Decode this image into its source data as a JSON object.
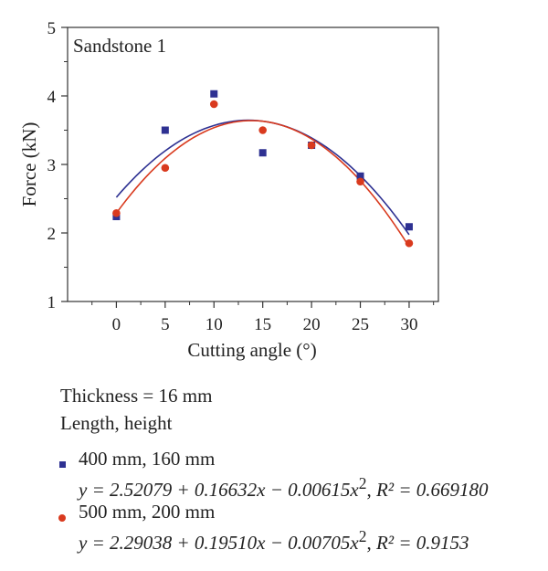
{
  "chart_data": {
    "type": "scatter",
    "title": "",
    "panel_label": "Sandstone 1",
    "xlabel": "Cutting angle (°)",
    "ylabel": "Force (kN)",
    "xlim": [
      -5,
      33
    ],
    "ylim": [
      1,
      5
    ],
    "x_ticks": [
      0,
      5,
      10,
      15,
      20,
      25,
      30
    ],
    "y_ticks": [
      1,
      2,
      3,
      4,
      5
    ],
    "grid": false,
    "series": [
      {
        "name": "400 mm, 160 mm",
        "marker": "square",
        "color": "#2e3192",
        "x": [
          0,
          5,
          10,
          15,
          20,
          25,
          30
        ],
        "y": [
          2.24,
          3.5,
          4.03,
          3.17,
          3.28,
          2.83,
          2.09
        ],
        "fit": {
          "a": 2.52079,
          "b": 0.16632,
          "c": -0.00615,
          "equation": "y = 2.52079 + 0.16632x − 0.00615x",
          "r2": "R² = 0.669180"
        }
      },
      {
        "name": "500 mm, 200 mm",
        "marker": "circle",
        "color": "#d93a1e",
        "x": [
          0,
          5,
          10,
          15,
          20,
          25,
          30
        ],
        "y": [
          2.29,
          2.95,
          3.88,
          3.5,
          3.28,
          2.75,
          1.85
        ],
        "fit": {
          "a": 2.29038,
          "b": 0.1951,
          "c": -0.00705,
          "equation": "y = 2.29038 + 0.19510x − 0.00705x",
          "r2": "R² = 0.9153"
        }
      }
    ]
  },
  "legend": {
    "thickness": "Thickness = 16 mm",
    "dims_label": "Length, height"
  }
}
